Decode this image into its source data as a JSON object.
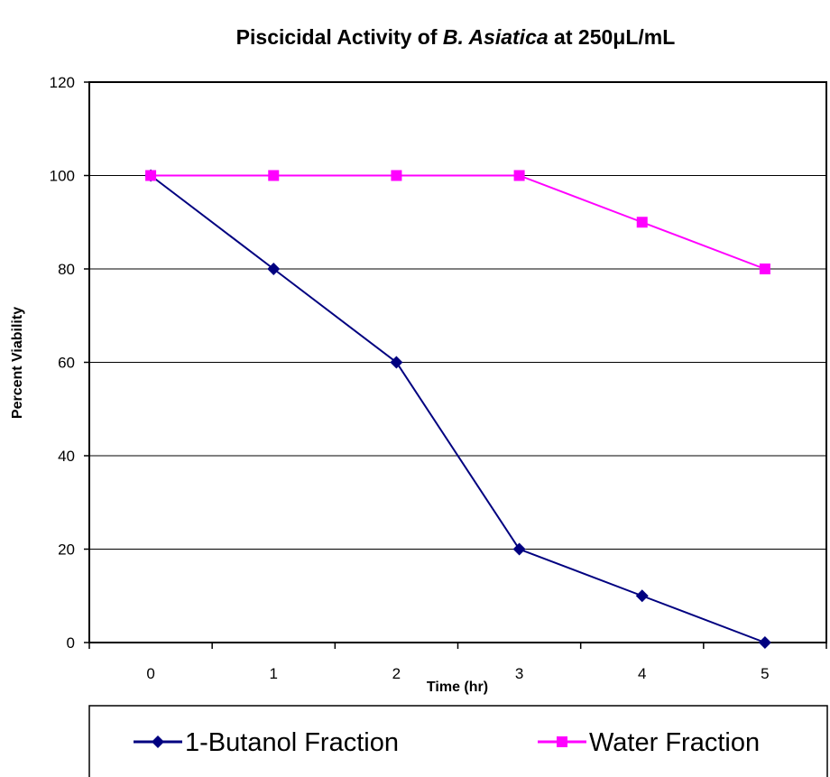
{
  "chart_data": {
    "type": "line",
    "title_parts": [
      {
        "text": "Piscicidal Activity of ",
        "italic": false
      },
      {
        "text": "B. Asiatica",
        "italic": true
      },
      {
        "text": " at 250",
        "italic": false
      },
      {
        "text": "μ",
        "italic": false
      },
      {
        "text": "L/mL",
        "italic": false
      }
    ],
    "xlabel": "Time (hr)",
    "ylabel": "Percent Viability",
    "x": [
      0,
      1,
      2,
      3,
      4,
      5
    ],
    "ylim": [
      0,
      120
    ],
    "yticks": [
      0,
      20,
      40,
      60,
      80,
      100,
      120
    ],
    "grid": true,
    "legend_position": "bottom",
    "series": [
      {
        "name": "1-Butanol Fraction",
        "values": [
          100,
          80,
          60,
          20,
          10,
          0
        ],
        "color": "#000080",
        "marker": "diamond"
      },
      {
        "name": "Water Fraction",
        "values": [
          100,
          100,
          100,
          100,
          90,
          80
        ],
        "color": "#ff00ff",
        "marker": "square"
      }
    ]
  }
}
